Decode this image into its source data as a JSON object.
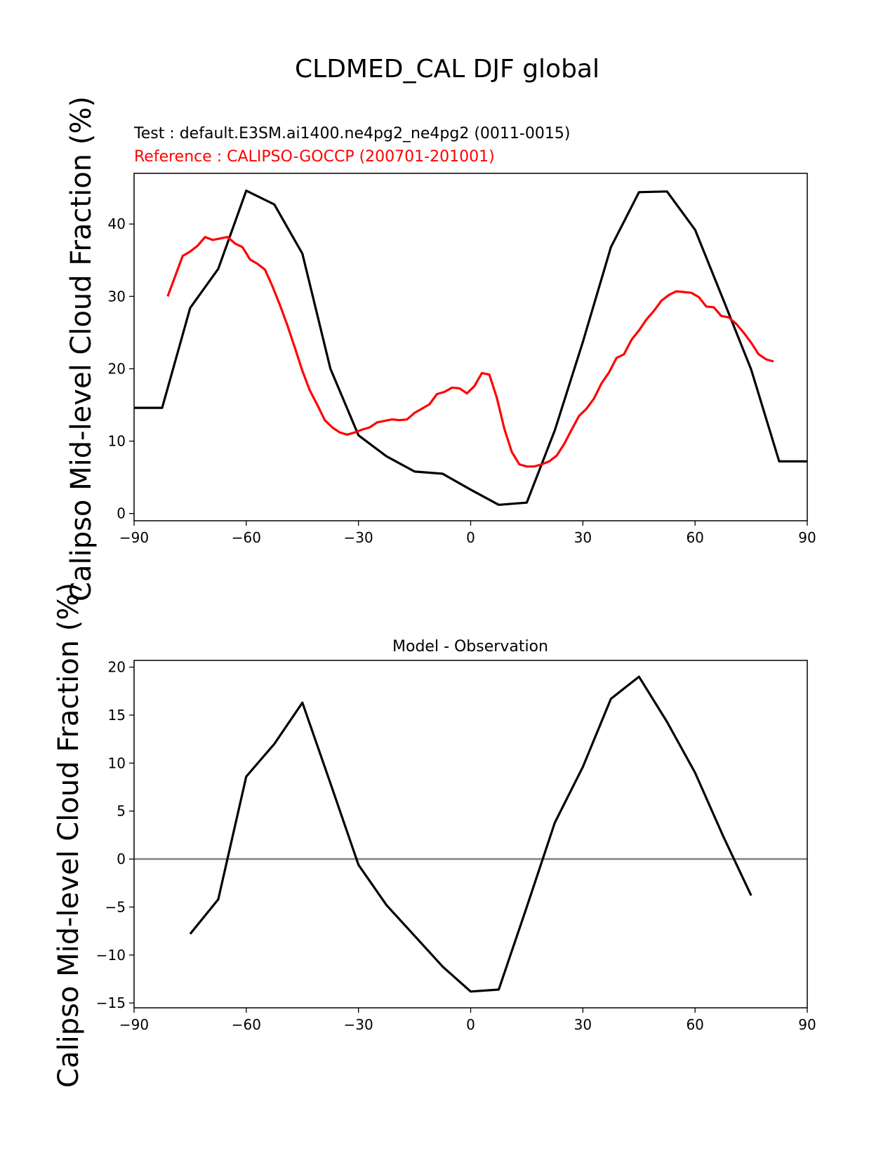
{
  "figure_title": "CLDMED_CAL DJF global",
  "chart_data": [
    {
      "type": "line",
      "title": "",
      "test_label": "Test : default.E3SM.ai1400.ne4pg2_ne4pg2 (0011-0015)",
      "reference_label": "Reference : CALIPSO-GOCCP (200701-201001)",
      "xlabel": "",
      "ylabel": "Calipso Mid-level Cloud Fraction (%)",
      "xlim": [
        -90,
        90
      ],
      "ylim": [
        -1,
        47
      ],
      "xticks": [
        -90,
        -60,
        -30,
        0,
        30,
        60,
        90
      ],
      "xtick_labels": [
        "−90",
        "−60",
        "−30",
        "0",
        "30",
        "60",
        "90"
      ],
      "yticks": [
        0,
        10,
        20,
        30,
        40
      ],
      "ytick_labels": [
        "0",
        "10",
        "20",
        "30",
        "40"
      ],
      "grid": false,
      "series": [
        {
          "color": "#000000",
          "x": [
            -90,
            -82.5,
            -75,
            -67.5,
            -60,
            -52.5,
            -45,
            -37.5,
            -30,
            -22.5,
            -15,
            -7.5,
            0,
            7.5,
            15,
            22.5,
            30,
            37.5,
            45,
            52.5,
            60,
            67.5,
            75,
            82.5,
            90
          ],
          "y": [
            14.6,
            14.6,
            28.4,
            33.8,
            44.6,
            42.7,
            35.9,
            20.0,
            10.8,
            7.9,
            5.8,
            5.5,
            3.3,
            1.2,
            1.5,
            11.5,
            23.7,
            36.8,
            44.4,
            44.5,
            39.2,
            29.6,
            19.9,
            7.2,
            7.2
          ]
        },
        {
          "color": "#ff0000",
          "x": [
            -81,
            -77,
            -75,
            -73,
            -71,
            -69,
            -67,
            -65,
            -63,
            -61,
            -59,
            -57,
            -55,
            -53,
            -51,
            -49,
            -47,
            -45,
            -43,
            -41,
            -39,
            -37,
            -35,
            -33,
            -31,
            -29,
            -27,
            -25,
            -23,
            -21,
            -19,
            -17,
            -15,
            -13,
            -11,
            -9,
            -7,
            -5,
            -3,
            -1,
            1,
            3,
            5,
            7,
            9,
            11,
            13,
            15,
            17,
            19,
            21,
            23,
            25,
            27,
            29,
            31,
            33,
            35,
            37,
            39,
            41,
            43,
            45,
            47,
            49,
            51,
            53,
            55,
            57,
            59,
            61,
            63,
            65,
            67,
            69,
            71,
            73,
            75,
            77,
            79,
            81
          ],
          "y": [
            30.0,
            35.6,
            36.2,
            37.0,
            38.2,
            37.8,
            38.0,
            38.2,
            37.3,
            36.8,
            35.1,
            34.5,
            33.7,
            31.4,
            28.8,
            26.0,
            22.9,
            19.7,
            17.0,
            15.0,
            12.9,
            11.9,
            11.2,
            10.9,
            11.2,
            11.6,
            11.9,
            12.6,
            12.8,
            13.0,
            12.9,
            13.0,
            13.9,
            14.5,
            15.1,
            16.5,
            16.8,
            17.4,
            17.3,
            16.6,
            17.6,
            19.4,
            19.2,
            16.0,
            11.7,
            8.5,
            6.8,
            6.5,
            6.5,
            6.8,
            7.2,
            8.0,
            9.6,
            11.6,
            13.5,
            14.5,
            15.9,
            18.0,
            19.5,
            21.5,
            22.0,
            24.0,
            25.3,
            26.8,
            28.0,
            29.4,
            30.2,
            30.7,
            30.6,
            30.5,
            29.9,
            28.6,
            28.5,
            27.3,
            27.1,
            26.2,
            25.0,
            23.6,
            22.0,
            21.3,
            21.0
          ]
        }
      ]
    },
    {
      "type": "line",
      "title": "Model - Observation",
      "xlabel": "",
      "ylabel": "Calipso Mid-level Cloud Fraction (%)",
      "xlim": [
        -90,
        90
      ],
      "ylim": [
        -15.5,
        20.7
      ],
      "xticks": [
        -90,
        -60,
        -30,
        0,
        30,
        60,
        90
      ],
      "xtick_labels": [
        "−90",
        "−60",
        "−30",
        "0",
        "30",
        "60",
        "90"
      ],
      "yticks": [
        -15,
        -10,
        -5,
        0,
        5,
        10,
        15,
        20
      ],
      "ytick_labels": [
        "−15",
        "−10",
        "−5",
        "0",
        "5",
        "10",
        "15",
        "20"
      ],
      "grid": false,
      "zero_line_color": "#808080",
      "series": [
        {
          "color": "#000000",
          "x": [
            -75,
            -67.5,
            -60,
            -52.5,
            -45,
            -37.5,
            -30,
            -22.5,
            -15,
            -7.5,
            0,
            7.5,
            15,
            22.5,
            30,
            37.5,
            45,
            52.5,
            60,
            67.5,
            75
          ],
          "y": [
            -7.8,
            -4.2,
            8.6,
            12.0,
            16.3,
            7.9,
            -0.6,
            -4.8,
            -8.0,
            -11.2,
            -13.8,
            -13.6,
            -5.0,
            3.8,
            9.6,
            16.7,
            19.0,
            14.3,
            9.0,
            2.4,
            -3.8
          ]
        }
      ]
    }
  ]
}
